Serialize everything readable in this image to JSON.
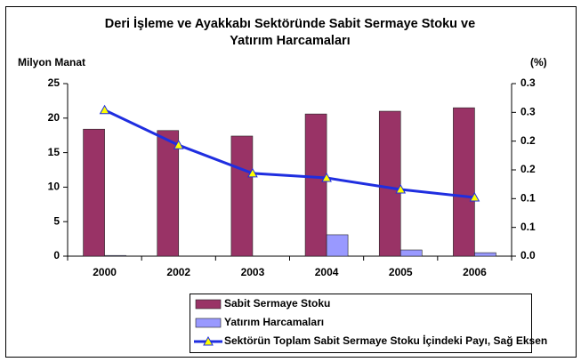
{
  "chart_data": {
    "type": "bar",
    "title": [
      "Deri İşleme ve Ayakkabı Sektöründe Sabit Sermaye Stoku ve",
      "Yatırım Harcamaları"
    ],
    "y_label": "Milyon Manat",
    "y2_label": "(%)",
    "categories": [
      "2000",
      "2002",
      "2003",
      "2004",
      "2005",
      "2006"
    ],
    "series": [
      {
        "name": "Sabit Sermaye Stoku",
        "type": "bar",
        "color": "#993366",
        "values": [
          18.4,
          18.2,
          17.4,
          20.6,
          21.0,
          21.5
        ]
      },
      {
        "name": "Yatırım Harcamaları",
        "type": "bar",
        "color": "#9999ff",
        "values": [
          0.1,
          0,
          0,
          3.1,
          0.9,
          0.5
        ]
      },
      {
        "name": "Sektörün Toplam Sabit Sermaye Stoku İçindeki Payı, Sağ Eksen",
        "type": "line",
        "axis": "y2",
        "color": "#1f2ee0",
        "marker_color": "#ffff00",
        "values": [
          0.254,
          0.193,
          0.144,
          0.136,
          0.116,
          0.102
        ]
      }
    ],
    "ylim": [
      0,
      25
    ],
    "yticks": [
      0,
      5,
      10,
      15,
      20,
      25
    ],
    "y2lim": [
      0,
      0.3
    ],
    "y2ticks": [
      {
        "value": 0,
        "label": "0.0"
      },
      {
        "value": 0.05,
        "label": "0.1"
      },
      {
        "value": 0.1,
        "label": "0.1"
      },
      {
        "value": 0.15,
        "label": "0.2"
      },
      {
        "value": 0.2,
        "label": "0.2"
      },
      {
        "value": 0.25,
        "label": "0.3"
      },
      {
        "value": 0.3,
        "label": "0.3"
      }
    ],
    "grid": false,
    "legend": "bottom"
  }
}
